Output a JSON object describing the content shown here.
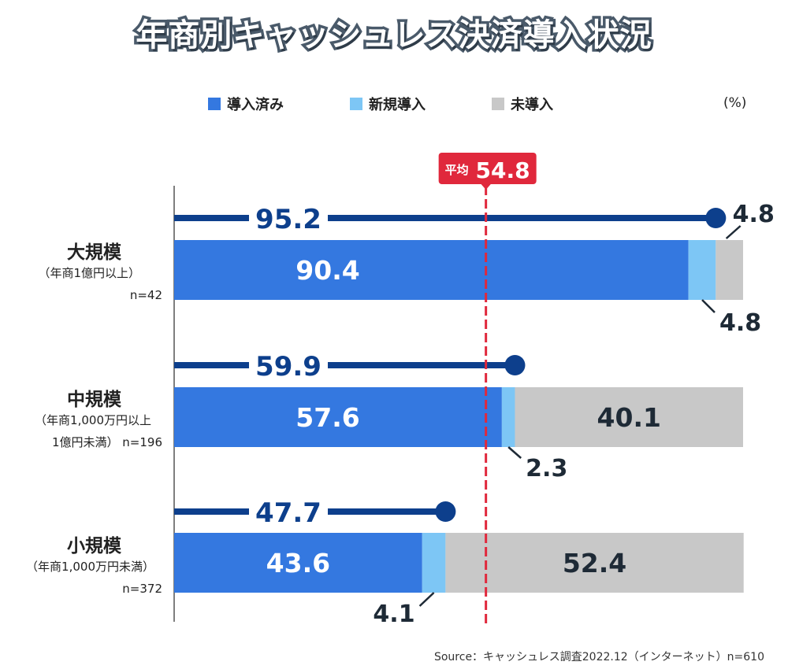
{
  "title": "年商別キャッシュレス決済導入状況",
  "unit_label": "(%)",
  "source": "Source：キャッシュレス調査2022.12（インターネット）n=610",
  "legend": [
    {
      "label": "導入済み",
      "color": "#3478e0"
    },
    {
      "label": "新規導入",
      "color": "#7dc6f5"
    },
    {
      "label": "未導入",
      "color": "#c8c8c8"
    }
  ],
  "colors": {
    "introduced": "#3478e0",
    "new": "#7dc6f5",
    "not_introduced": "#c8c8c8",
    "total_line": "#0d3f8c",
    "average": "#e0283c",
    "axis": "#555555"
  },
  "categories": [
    {
      "name": "大規模",
      "sub1": "（年商1億円以上）",
      "sub2": "",
      "n": "n=42"
    },
    {
      "name": "中規模",
      "sub1": "（年商1,000万円以上",
      "sub2": "1億円未満）",
      "n": "n=196"
    },
    {
      "name": "小規模",
      "sub1": "（年商1,000万円未満）",
      "sub2": "",
      "n": "n=372"
    }
  ],
  "chart_data": {
    "type": "bar",
    "orientation": "horizontal",
    "stacked": true,
    "title": "年商別キャッシュレス決済導入状況",
    "categories": [
      "大規模",
      "中規模",
      "小規模"
    ],
    "series": [
      {
        "name": "導入済み",
        "values": [
          90.4,
          57.6,
          43.6
        ],
        "labels": [
          "90.4",
          "57.6",
          "43.6"
        ]
      },
      {
        "name": "新規導入",
        "values": [
          4.8,
          2.3,
          4.1
        ],
        "labels": [
          "4.8",
          "2.3",
          "4.1"
        ]
      },
      {
        "name": "未導入",
        "values": [
          4.8,
          40.1,
          52.4
        ],
        "labels": [
          "4.8",
          "40.1",
          "52.4"
        ]
      }
    ],
    "totals": {
      "name": "導入済み＋新規導入",
      "values": [
        95.2,
        59.9,
        47.7
      ],
      "labels": [
        "95.2",
        "59.9",
        "47.7"
      ]
    },
    "average": {
      "label": "平均",
      "value": 54.8,
      "value_label": "54.8"
    },
    "xlim": [
      0,
      100
    ],
    "unit": "%"
  }
}
